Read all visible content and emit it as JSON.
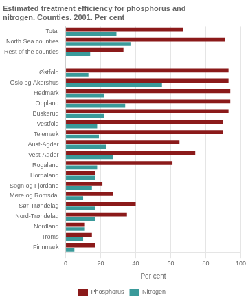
{
  "chart_data": {
    "type": "bar",
    "orientation": "horizontal",
    "title": "Estimated treatment efficiency for phosphorus and\nnitrogen. Counties. 2001. Per cent",
    "categories": [
      "Total",
      "North Sea counties",
      "Rest of the counties",
      null,
      "Østfold",
      "Oslo og Akershus",
      "Hedmark",
      "Oppland",
      "Buskerud",
      "Vestfold",
      "Telemark",
      "Aust-Agder",
      "Vest-Agder",
      "Rogaland",
      "Hordaland",
      "Sogn og Fjordane",
      "Møre og Romsdal",
      "Sør-Trøndelag",
      "Nord-Trøndelag",
      "Nordland",
      "Troms",
      "Finnmark"
    ],
    "series": [
      {
        "name": "Phosphorus",
        "color": "#8B1A1A",
        "values": [
          67,
          91,
          33,
          null,
          93,
          93,
          94,
          94,
          93,
          90,
          90,
          65,
          74,
          61,
          17,
          21,
          27,
          40,
          35,
          11,
          15,
          17
        ]
      },
      {
        "name": "Nitrogen",
        "color": "#3A9A9A",
        "values": [
          29,
          37,
          14,
          null,
          13,
          55,
          22,
          34,
          22,
          18,
          19,
          23,
          27,
          18,
          17,
          15,
          10,
          17,
          17,
          11,
          10,
          5
        ]
      }
    ],
    "xlabel": "Per cent",
    "xlim": [
      0,
      100
    ],
    "xticks": [
      0,
      20,
      40,
      60,
      80,
      100
    ],
    "grid": true,
    "legend": "bottom"
  }
}
